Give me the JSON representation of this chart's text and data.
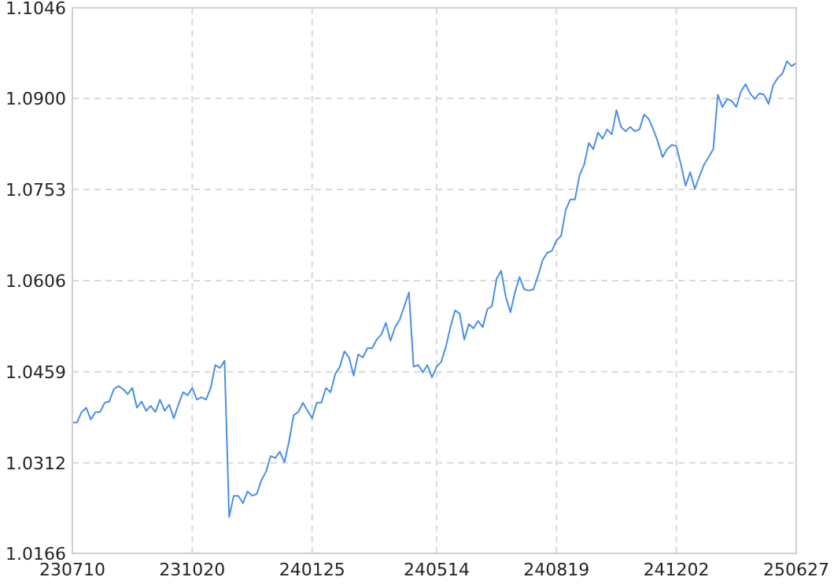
{
  "chart_data": {
    "type": "line",
    "categories": [
      "230710",
      null,
      null,
      null,
      null,
      null,
      null,
      null,
      null,
      null,
      null,
      null,
      null,
      null,
      null,
      null,
      null,
      null,
      null,
      null,
      null,
      null,
      null,
      null,
      null,
      null,
      "231020",
      null,
      null,
      null,
      null,
      null,
      null,
      null,
      null,
      null,
      null,
      null,
      null,
      null,
      null,
      null,
      null,
      null,
      null,
      null,
      null,
      null,
      null,
      null,
      null,
      null,
      "240125",
      null,
      null,
      null,
      null,
      null,
      null,
      null,
      null,
      null,
      null,
      null,
      null,
      null,
      null,
      null,
      null,
      null,
      null,
      null,
      null,
      null,
      null,
      null,
      null,
      null,
      null,
      "240514",
      null,
      null,
      null,
      null,
      null,
      null,
      null,
      null,
      null,
      null,
      null,
      null,
      null,
      null,
      null,
      null,
      null,
      null,
      null,
      null,
      null,
      null,
      null,
      null,
      null,
      "240819",
      null,
      null,
      null,
      null,
      null,
      null,
      null,
      null,
      null,
      null,
      null,
      null,
      null,
      null,
      null,
      null,
      null,
      null,
      null,
      null,
      null,
      null,
      null,
      null,
      null,
      "241202",
      null,
      null,
      null,
      null,
      null,
      null,
      null,
      null,
      null,
      null,
      null,
      null,
      null,
      null,
      null,
      null,
      null,
      null,
      null,
      null,
      null,
      null,
      null,
      null,
      null,
      "250627"
    ],
    "series": [
      {
        "color": "#4a8fe7",
        "values": [
          1.0377,
          1.0377,
          1.0394,
          1.0401,
          1.0382,
          1.0394,
          1.0394,
          1.0409,
          1.0411,
          1.0431,
          1.0436,
          1.0431,
          1.0423,
          1.0433,
          1.0401,
          1.0411,
          1.0396,
          1.0404,
          1.0394,
          1.0414,
          1.0396,
          1.0406,
          1.0384,
          1.0406,
          1.0426,
          1.0421,
          1.0433,
          1.0414,
          1.0418,
          1.0414,
          1.0433,
          1.047,
          1.0465,
          1.0477,
          1.0225,
          1.0259,
          1.0259,
          1.0247,
          1.0266,
          1.0259,
          1.0262,
          1.0284,
          1.0298,
          1.0323,
          1.032,
          1.033,
          1.0313,
          1.0347,
          1.0389,
          1.0394,
          1.0409,
          1.0396,
          1.0384,
          1.0409,
          1.0409,
          1.0433,
          1.0426,
          1.0455,
          1.0467,
          1.0492,
          1.0482,
          1.0453,
          1.0487,
          1.0482,
          1.0497,
          1.0497,
          1.0511,
          1.0519,
          1.0538,
          1.0509,
          1.0531,
          1.0543,
          1.0565,
          1.0587,
          1.0467,
          1.047,
          1.0458,
          1.047,
          1.045,
          1.0467,
          1.0475,
          1.0499,
          1.0531,
          1.0558,
          1.0553,
          1.0511,
          1.0536,
          1.0529,
          1.0541,
          1.0531,
          1.056,
          1.0565,
          1.0609,
          1.0622,
          1.058,
          1.0555,
          1.0587,
          1.0612,
          1.0592,
          1.059,
          1.0592,
          1.0614,
          1.0639,
          1.0651,
          1.0654,
          1.0671,
          1.0678,
          1.072,
          1.0737,
          1.0737,
          1.0776,
          1.0793,
          1.0828,
          1.0818,
          1.0845,
          1.0835,
          1.085,
          1.0842,
          1.0881,
          1.0854,
          1.0847,
          1.0854,
          1.0847,
          1.085,
          1.0874,
          1.0867,
          1.085,
          1.083,
          1.0805,
          1.0818,
          1.0825,
          1.0823,
          1.0793,
          1.0759,
          1.0781,
          1.0754,
          1.0774,
          1.0793,
          1.0805,
          1.0818,
          1.0906,
          1.0886,
          1.0899,
          1.0896,
          1.0886,
          1.0911,
          1.0923,
          1.0908,
          1.0899,
          1.0908,
          1.0906,
          1.0891,
          1.0921,
          1.0933,
          1.094,
          1.096,
          1.0952,
          1.0957
        ]
      }
    ],
    "ylim": [
      1.0166,
      1.1046
    ],
    "yticks": [
      {
        "value": 1.0166,
        "label": "1.0166"
      },
      {
        "value": 1.0312,
        "label": "1.0312"
      },
      {
        "value": 1.0459,
        "label": "1.0459"
      },
      {
        "value": 1.0606,
        "label": "1.0606"
      },
      {
        "value": 1.0753,
        "label": "1.0753"
      },
      {
        "value": 1.09,
        "label": "1.0900"
      },
      {
        "value": 1.1046,
        "label": "1.1046"
      }
    ],
    "grid": true,
    "marker": "none",
    "line_style": "solid"
  }
}
